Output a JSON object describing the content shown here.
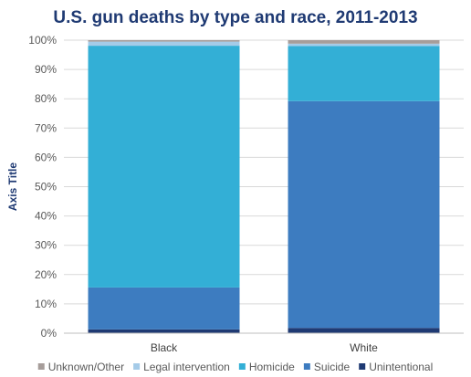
{
  "chart_data": {
    "type": "bar",
    "stacked": true,
    "percent": true,
    "title": "U.S. gun deaths by type and race, 2011-2013",
    "xlabel": "",
    "ylabel": "Axis Title",
    "ylim": [
      0,
      100
    ],
    "yticks": [
      "0%",
      "10%",
      "20%",
      "30%",
      "40%",
      "50%",
      "60%",
      "70%",
      "80%",
      "90%",
      "100%"
    ],
    "grid": true,
    "legend_position": "bottom",
    "categories": [
      "Black",
      "White"
    ],
    "series": [
      {
        "name": "Unintentional",
        "color": "#1f3a73",
        "values": [
          1.3,
          1.8
        ]
      },
      {
        "name": "Suicide",
        "color": "#3d7cc0",
        "values": [
          14.3,
          77.4
        ]
      },
      {
        "name": "Homicide",
        "color": "#33afd6",
        "values": [
          82.5,
          18.8
        ]
      },
      {
        "name": "Legal intervention",
        "color": "#a5cbe8",
        "values": [
          1.4,
          0.8
        ]
      },
      {
        "name": "Unknown/Other",
        "color": "#a69d9a",
        "values": [
          0.5,
          1.2
        ]
      }
    ],
    "legend_order": [
      "Unknown/Other",
      "Legal intervention",
      "Homicide",
      "Suicide",
      "Unintentional"
    ],
    "colors": {
      "title": "#1f3a73",
      "axis_text": "#595959",
      "grid": "#d9d9d9"
    }
  }
}
